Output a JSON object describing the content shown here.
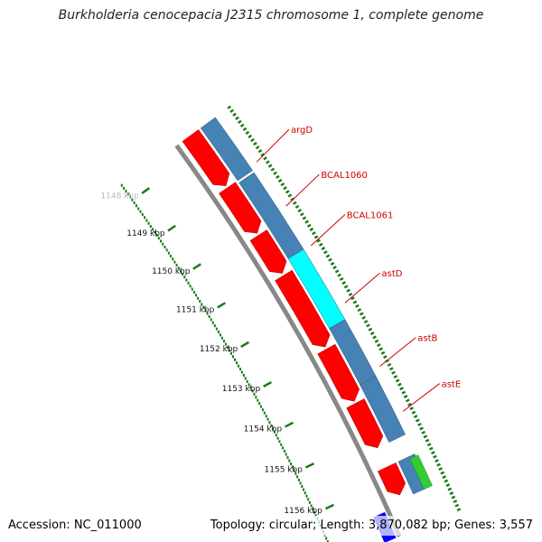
{
  "title": "Burkholderia cenocepacia J2315 chromosome 1, complete genome",
  "footer": {
    "accession": "Accession: NC_011000",
    "topology": "Topology: circular; Length: 3,870,082 bp; Genes: 3,557"
  },
  "colors": {
    "backbone": "#888888",
    "forward_strand": "#ff0000",
    "reverse_strand": "#4682b4",
    "highlight": "#00ffff",
    "green_feature": "#33cc33",
    "blue_feature": "#0000ff",
    "tick": "#1a7a1a",
    "label": "#cc0000"
  },
  "scale": [
    {
      "label": "1148 kbp",
      "pos": 1148
    },
    {
      "label": "1149 kbp",
      "pos": 1149
    },
    {
      "label": "1150 kbp",
      "pos": 1150
    },
    {
      "label": "1151 kbp",
      "pos": 1151
    },
    {
      "label": "1152 kbp",
      "pos": 1152
    },
    {
      "label": "1153 kbp",
      "pos": 1153
    },
    {
      "label": "1154 kbp",
      "pos": 1154
    },
    {
      "label": "1155 kbp",
      "pos": 1155
    },
    {
      "label": "1156 kbp",
      "pos": 1156
    }
  ],
  "gene_labels": [
    {
      "name": "argD",
      "pos": 1148.85
    },
    {
      "name": "BCAL1060",
      "pos": 1149.95
    },
    {
      "name": "BCAL1061",
      "pos": 1150.92
    },
    {
      "name": "astD",
      "pos": 1152.3
    },
    {
      "name": "astB",
      "pos": 1153.8
    },
    {
      "name": "astE",
      "pos": 1154.85
    }
  ]
}
